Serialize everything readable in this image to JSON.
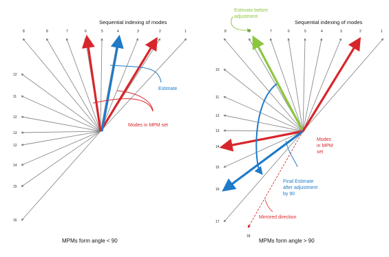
{
  "left_panel": {
    "title": "Sequential indexing of modes",
    "top_labels": [
      "8",
      "8",
      "7",
      "6",
      "5",
      "4",
      "3",
      "2",
      "1"
    ],
    "side_labels": [
      "12",
      "11",
      "12",
      "13",
      "12",
      "14",
      "15",
      "16",
      "17"
    ],
    "estimate_label": "Estimate",
    "modes_label": "Modes in MPM set",
    "caption": "MPMs form angle < 90",
    "colors": {
      "modes": "#d7262b",
      "estimate": "#1f7ac8",
      "rays": "#8a8a8a"
    }
  },
  "right_panel": {
    "title": "Sequential indexing of modes",
    "top_labels": [
      "8",
      "8",
      "7",
      "6",
      "5",
      "4",
      "3",
      "2",
      "1"
    ],
    "side_labels": [
      "10",
      "11",
      "12",
      "13",
      "14",
      "15",
      "16",
      "17"
    ],
    "estimate_before": [
      "Estimate before",
      "adjustment"
    ],
    "modes_label": [
      "Modes",
      "in MPM",
      "set"
    ],
    "final_estimate": [
      "Final Estimate",
      "after adjustment",
      "by 90"
    ],
    "mirrored_label": "Mirrored direction",
    "bottom_label": "18",
    "caption": "MPMs form angle > 90",
    "colors": {
      "modes": "#d7262b",
      "estimate": "#1f7ac8",
      "estimate_before": "#8cc63f",
      "rays": "#8a8a8a"
    }
  }
}
